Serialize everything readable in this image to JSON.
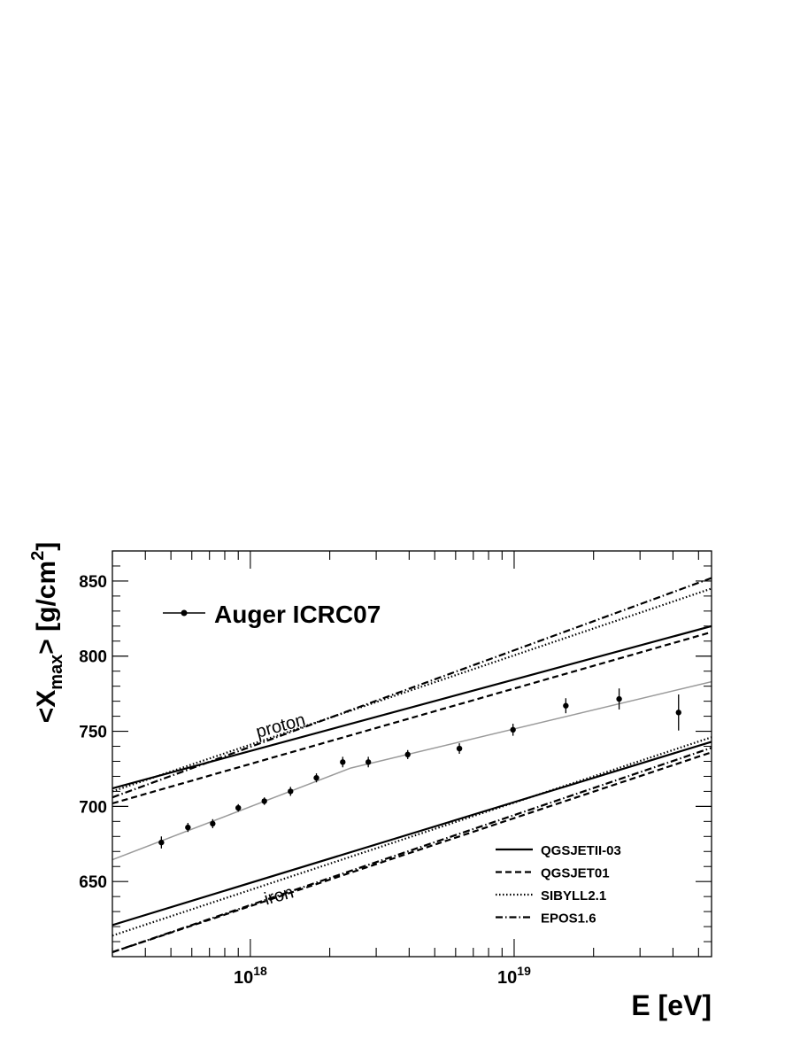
{
  "chart_data": {
    "type": "line",
    "xlabel": "E [eV]",
    "ylabel_parts": {
      "pre": "<X",
      "sub": "max",
      "mid": "> [g/cm",
      "sup": "2",
      "post": "]"
    },
    "x_scale": "log",
    "x_range_eV": [
      3e+17,
      5.6e+19
    ],
    "y_range": [
      600,
      870
    ],
    "x_tick_labels": [
      {
        "value": 1e+18,
        "base": "10",
        "exp": "18"
      },
      {
        "value": 1e+19,
        "base": "10",
        "exp": "19"
      }
    ],
    "y_ticks": [
      650,
      700,
      750,
      800,
      850
    ],
    "y_tick_labels": [
      "650",
      "700",
      "750",
      "800",
      "850"
    ],
    "grid": false,
    "data_series": {
      "name": "Auger ICRC07",
      "points": [
        {
          "x": 4.6e+17,
          "y": 676,
          "err": 4
        },
        {
          "x": 5.8e+17,
          "y": 686,
          "err": 3
        },
        {
          "x": 7.2e+17,
          "y": 688.5,
          "err": 3
        },
        {
          "x": 9e+17,
          "y": 699,
          "err": 2.5
        },
        {
          "x": 1.13e+18,
          "y": 703.5,
          "err": 2.5
        },
        {
          "x": 1.42e+18,
          "y": 710,
          "err": 3
        },
        {
          "x": 1.78e+18,
          "y": 719,
          "err": 3
        },
        {
          "x": 2.24e+18,
          "y": 729.5,
          "err": 3.5
        },
        {
          "x": 2.8e+18,
          "y": 729.5,
          "err": 3.5
        },
        {
          "x": 3.95e+18,
          "y": 734.5,
          "err": 3
        },
        {
          "x": 6.2e+18,
          "y": 738.5,
          "err": 3.5
        },
        {
          "x": 9.9e+18,
          "y": 751,
          "err": 4
        },
        {
          "x": 1.57e+19,
          "y": 767,
          "err": 5
        },
        {
          "x": 2.5e+19,
          "y": 771.5,
          "err": 7
        },
        {
          "x": 4.2e+19,
          "y": 762.5,
          "err": 12
        }
      ],
      "fit": [
        {
          "x": 3e+17,
          "y": 664.5
        },
        {
          "x": 2.4e+18,
          "y": 725.5
        },
        {
          "x": 5.6e+19,
          "y": 783
        }
      ]
    },
    "model_lines": [
      {
        "name": "QGSJETII-03",
        "style": "solid",
        "proton": [
          [
            3e+17,
            712
          ],
          [
            5.6e+19,
            820
          ]
        ],
        "iron": [
          [
            3e+17,
            621
          ],
          [
            5.6e+19,
            743
          ]
        ]
      },
      {
        "name": "QGSJET01",
        "style": "dashed",
        "proton": [
          [
            3e+17,
            702
          ],
          [
            5.6e+19,
            816
          ]
        ],
        "iron": [
          [
            3e+17,
            603
          ],
          [
            5.6e+19,
            736
          ]
        ]
      },
      {
        "name": "SIBYLL2.1",
        "style": "dotted",
        "proton": [
          [
            3e+17,
            710
          ],
          [
            5.6e+19,
            845
          ]
        ],
        "iron": [
          [
            3e+17,
            614
          ],
          [
            5.6e+19,
            746
          ]
        ]
      },
      {
        "name": "EPOS1.6",
        "style": "dashdot",
        "proton": [
          [
            3e+17,
            706
          ],
          [
            5.6e+19,
            852
          ]
        ],
        "iron": [
          [
            3e+17,
            603
          ],
          [
            5.6e+19,
            739
          ]
        ]
      }
    ],
    "annotations": [
      {
        "text": "proton",
        "x": 1.32e+18,
        "y": 750
      },
      {
        "text": "iron",
        "x": 1.3e+18,
        "y": 637
      }
    ],
    "legend_top": {
      "label": "Auger ICRC07",
      "placement": "top-left"
    },
    "legend_models_placement": "bottom-right"
  }
}
